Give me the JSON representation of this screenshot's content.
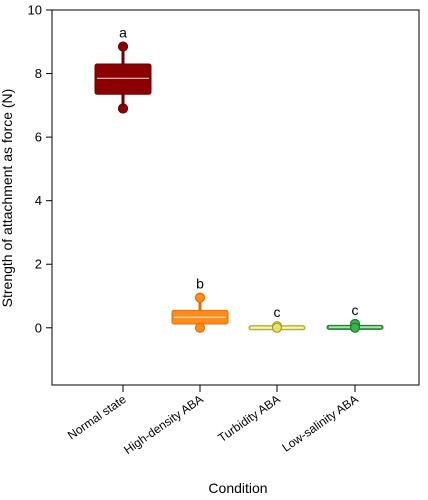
{
  "chart_data": {
    "type": "box",
    "title": "",
    "xlabel": "Condition",
    "ylabel": "Strength of attachment as force (N)",
    "ylim": [
      -1.8,
      10
    ],
    "yticks": [
      0,
      2,
      4,
      6,
      8,
      10
    ],
    "grid": false,
    "legend": "none",
    "categories": [
      "Normal state",
      "High-density ABA",
      "Turbidity ABA",
      "Low-salinity ABA"
    ],
    "series": [
      {
        "category": "Normal state",
        "whisker_low": 6.9,
        "q1": 7.35,
        "median": 7.85,
        "q3": 8.3,
        "whisker_high": 8.8,
        "outliers": [
          8.85,
          6.9
        ],
        "letter": "a",
        "fill": "#8b0000",
        "stroke": "#6e0000"
      },
      {
        "category": "High-density ABA",
        "whisker_low": 0.0,
        "q1": 0.12,
        "median": 0.33,
        "q3": 0.55,
        "whisker_high": 0.95,
        "outliers": [
          0.95,
          0.0
        ],
        "letter": "b",
        "fill": "#ff8c1a",
        "stroke": "#e07000"
      },
      {
        "category": "Turbidity ABA",
        "whisker_low": -0.02,
        "q1": -0.02,
        "median": 0.0,
        "q3": 0.02,
        "whisker_high": 0.05,
        "outliers": [
          0.05,
          0.0
        ],
        "letter": "c",
        "fill": "#e8e070",
        "stroke": "#a6a320"
      },
      {
        "category": "Low-salinity ABA",
        "whisker_low": -0.03,
        "q1": -0.03,
        "median": 0.02,
        "q3": 0.06,
        "whisker_high": 0.12,
        "outliers": [
          0.12,
          0.0
        ],
        "letter": "c",
        "fill": "#39b54a",
        "stroke": "#1e7a2c"
      }
    ]
  }
}
